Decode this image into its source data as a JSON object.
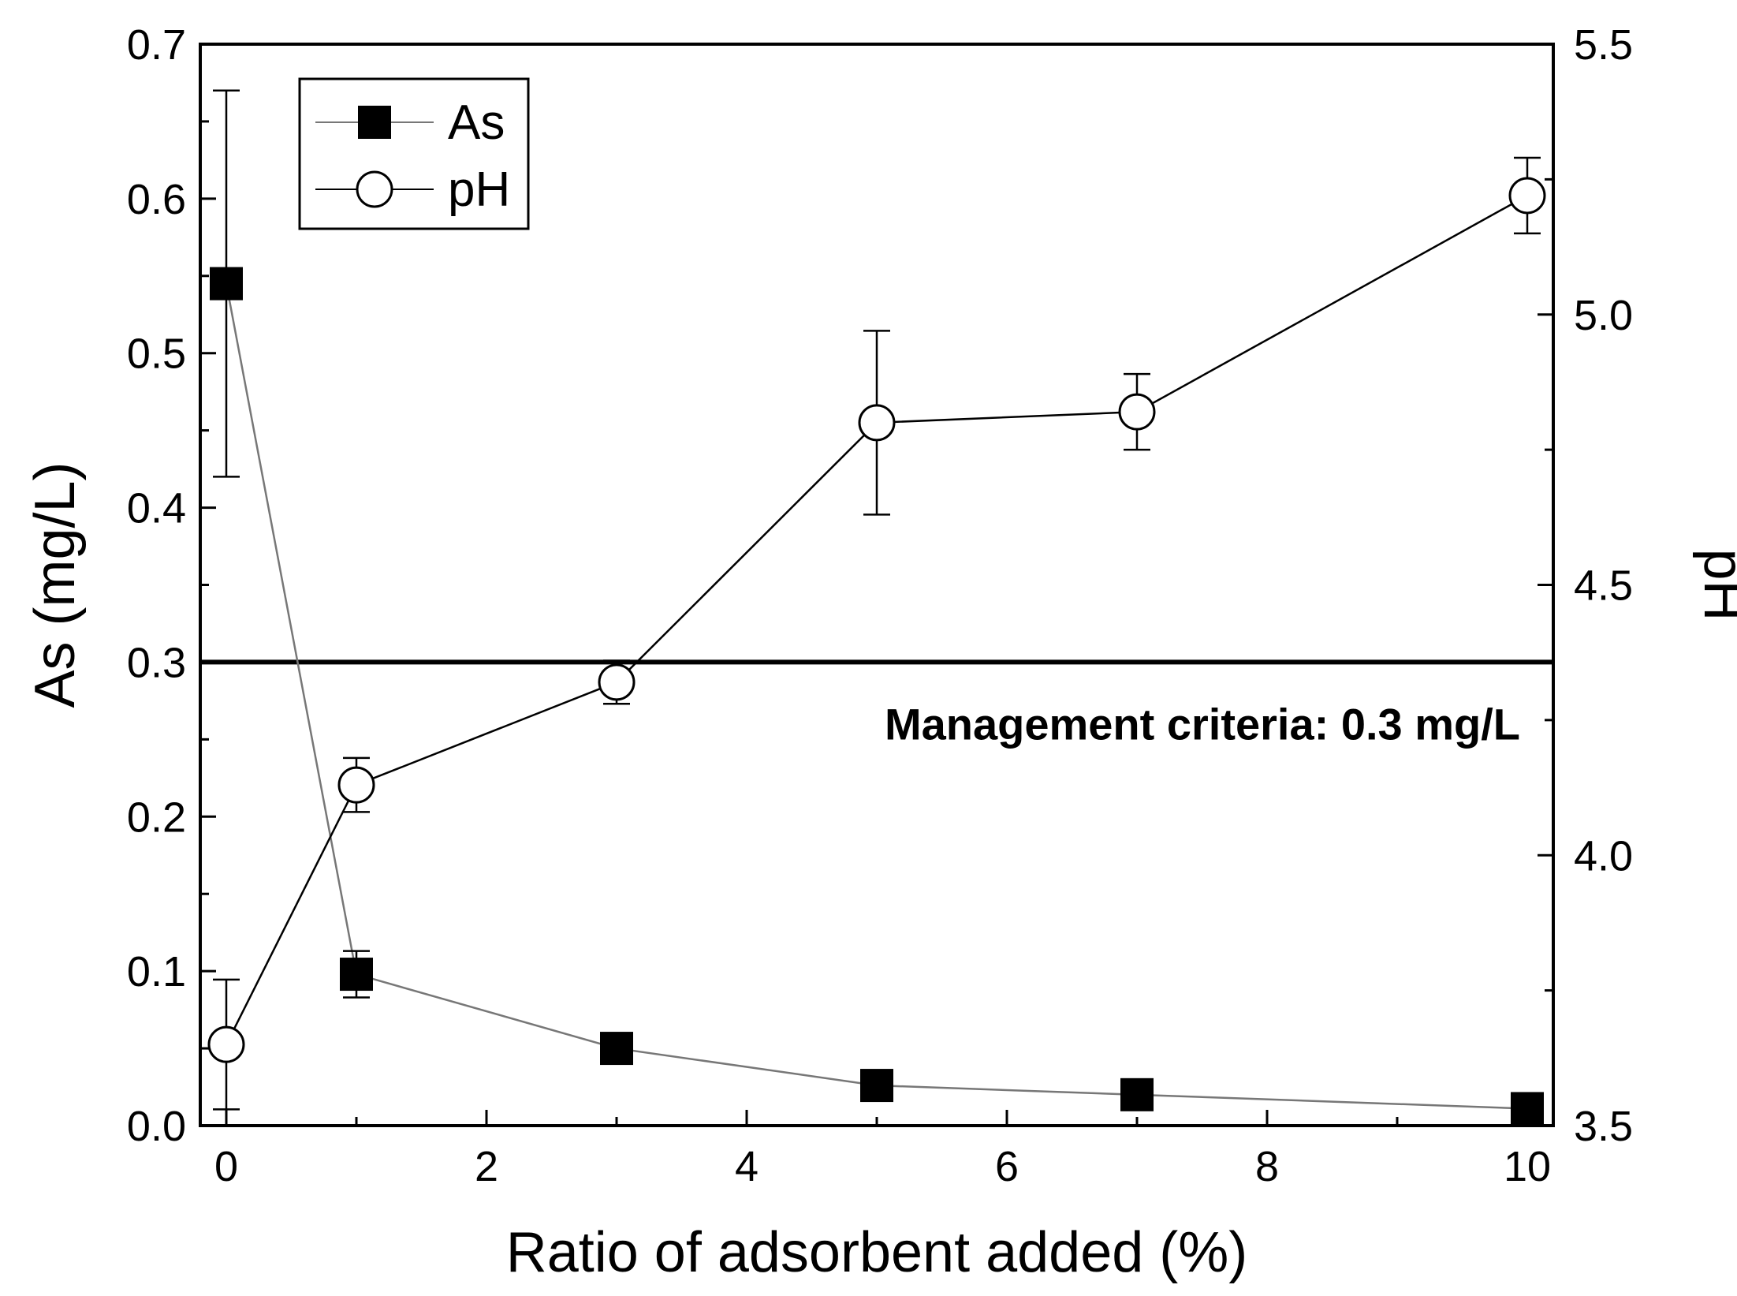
{
  "chart_data": {
    "type": "line",
    "title": "",
    "xlabel": "Ratio of adsorbent added (%)",
    "ylabel": "As (mg/L)",
    "y2label": "pH",
    "xlim": [
      -0.2,
      10.2
    ],
    "ylim": [
      0,
      0.7
    ],
    "y2lim": [
      3.5,
      5.5
    ],
    "x_ticks": [
      0,
      2,
      4,
      6,
      8,
      10
    ],
    "x_tick_labels": [
      "0",
      "2",
      "4",
      "6",
      "8",
      "10"
    ],
    "y_ticks": [
      0,
      0.1,
      0.2,
      0.3,
      0.4,
      0.5,
      0.6,
      0.7
    ],
    "y_tick_labels": [
      "0.0",
      "0.1",
      "0.2",
      "0.3",
      "0.4",
      "0.5",
      "0.6",
      "0.7"
    ],
    "y2_ticks": [
      3.5,
      4.0,
      4.5,
      5.0,
      5.5
    ],
    "y2_tick_labels": [
      "3.5",
      "4.0",
      "4.5",
      "5.0",
      "5.5"
    ],
    "grid": false,
    "legend_position": "top-left",
    "series": [
      {
        "name": "As",
        "axis": "left",
        "marker": "filled-square",
        "color": "#000000",
        "line_color": "#777777",
        "x": [
          0,
          1,
          3,
          5,
          7,
          10
        ],
        "values": [
          0.545,
          0.098,
          0.05,
          0.026,
          0.02,
          0.011
        ],
        "error": [
          0.125,
          0.015,
          0,
          0,
          0,
          0
        ]
      },
      {
        "name": "pH",
        "axis": "right",
        "marker": "open-circle",
        "color": "#000000",
        "line_color": "#000000",
        "x": [
          0,
          1,
          3,
          5,
          7,
          10
        ],
        "values": [
          3.65,
          4.13,
          4.32,
          4.8,
          4.82,
          5.22
        ],
        "error": [
          0.12,
          0.05,
          0.04,
          0.17,
          0.07,
          0.07
        ]
      }
    ],
    "reference_line": {
      "axis": "left",
      "value": 0.3,
      "label": "Management criteria: 0.3 mg/L"
    }
  }
}
